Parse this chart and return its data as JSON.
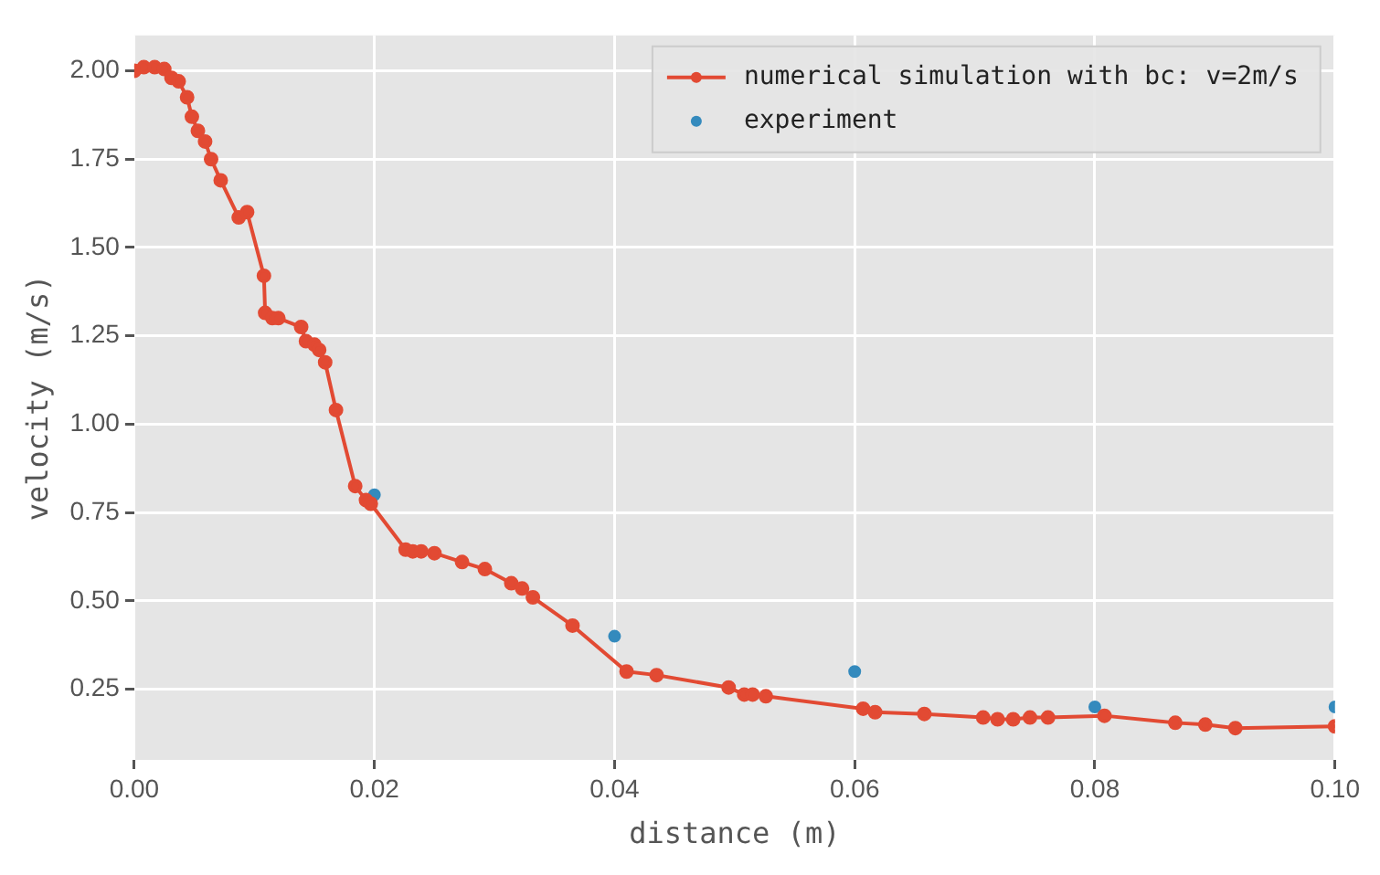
{
  "chart_data": {
    "type": "line",
    "xlabel": "distance (m)",
    "ylabel": "velocity (m/s)",
    "xlim": [
      0,
      0.1
    ],
    "ylim": [
      0.05,
      2.1
    ],
    "xticks": [
      {
        "value": 0,
        "label": "0.00"
      },
      {
        "value": 0.02,
        "label": "0.02"
      },
      {
        "value": 0.04,
        "label": "0.04"
      },
      {
        "value": 0.06,
        "label": "0.06"
      },
      {
        "value": 0.08,
        "label": "0.08"
      },
      {
        "value": 0.1,
        "label": "0.10"
      }
    ],
    "yticks": [
      {
        "value": 0.25,
        "label": "0.25"
      },
      {
        "value": 0.5,
        "label": "0.50"
      },
      {
        "value": 0.75,
        "label": "0.75"
      },
      {
        "value": 1,
        "label": "1.00"
      },
      {
        "value": 1.25,
        "label": "1.25"
      },
      {
        "value": 1.5,
        "label": "1.50"
      },
      {
        "value": 1.75,
        "label": "1.75"
      },
      {
        "value": 2,
        "label": "2.00"
      }
    ],
    "grid": true,
    "legend": "top right",
    "marker": "circle",
    "line_style": "solid",
    "series": [
      {
        "name": "numerical simulation with bc: v=2m/s",
        "type": "line",
        "color": "#e24a33",
        "x": [
          0,
          0.0008,
          0.0017,
          0.0025,
          0.0031,
          0.0037,
          0.0044,
          0.0048,
          0.0053,
          0.0059,
          0.0064,
          0.0072,
          0.0087,
          0.0094,
          0.0108,
          0.0109,
          0.0115,
          0.012,
          0.0139,
          0.0143,
          0.015,
          0.0154,
          0.0159,
          0.0168,
          0.0184,
          0.0193,
          0.0197,
          0.0226,
          0.0232,
          0.0239,
          0.025,
          0.0273,
          0.0292,
          0.0314,
          0.0323,
          0.0332,
          0.0365,
          0.041,
          0.0435,
          0.0495,
          0.0508,
          0.0515,
          0.0526,
          0.0607,
          0.0617,
          0.0658,
          0.0707,
          0.0719,
          0.0732,
          0.0746,
          0.0761,
          0.0808,
          0.0867,
          0.0892,
          0.0917,
          0.1
        ],
        "values": [
          2.0,
          2.01,
          2.01,
          2.005,
          1.98,
          1.97,
          1.925,
          1.87,
          1.83,
          1.8,
          1.75,
          1.69,
          1.585,
          1.6,
          1.42,
          1.315,
          1.3,
          1.3,
          1.275,
          1.235,
          1.225,
          1.21,
          1.175,
          1.04,
          0.825,
          0.785,
          0.775,
          0.645,
          0.64,
          0.64,
          0.635,
          0.61,
          0.59,
          0.55,
          0.535,
          0.51,
          0.43,
          0.3,
          0.29,
          0.255,
          0.235,
          0.235,
          0.23,
          0.195,
          0.185,
          0.18,
          0.17,
          0.165,
          0.165,
          0.17,
          0.17,
          0.175,
          0.155,
          0.15,
          0.14,
          0.145
        ]
      },
      {
        "name": "experiment",
        "type": "scatter",
        "color": "#348abd",
        "x": [
          0.02,
          0.04,
          0.06,
          0.08,
          0.1
        ],
        "values": [
          0.8,
          0.4,
          0.3,
          0.2,
          0.2
        ]
      }
    ]
  }
}
